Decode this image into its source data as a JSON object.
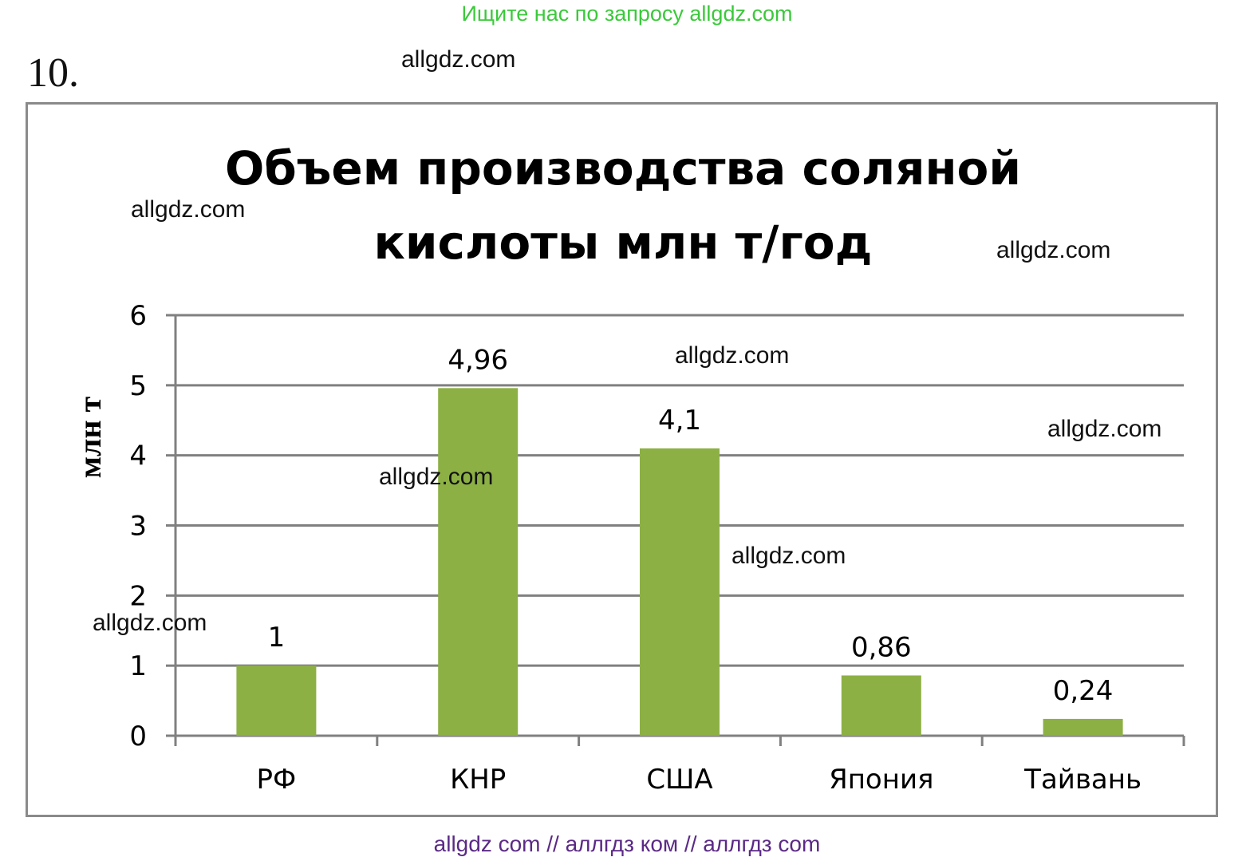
{
  "banner": "Ищите нас по запросу allgdz.com",
  "problem_number": "10.",
  "watermarks": [
    "allgdz.com",
    "allgdz.com",
    "allgdz.com",
    "allgdz.com",
    "allgdz.com",
    "allgdz.com",
    "allgdz.com",
    "allgdz.com"
  ],
  "footer": "allgdz com  //  аллгдз ком  //  аллгдз com",
  "chart_data": {
    "type": "bar",
    "title_line1": "Объем производства соляной",
    "title_line2": "кислоты млн т/год",
    "ylabel": "млн т",
    "xlabel": "",
    "categories": [
      "РФ",
      "КНР",
      "США",
      "Япония",
      "Тайвань"
    ],
    "values": [
      1,
      4.96,
      4.1,
      0.86,
      0.24
    ],
    "value_labels": [
      "1",
      "4,96",
      "4,1",
      "0,86",
      "0,24"
    ],
    "yticks": [
      "0",
      "1",
      "2",
      "3",
      "4",
      "5",
      "6"
    ],
    "ylim": [
      0,
      6
    ],
    "grid": true,
    "legend": "none",
    "bar_color": "#8db045",
    "grid_color": "#808080"
  }
}
